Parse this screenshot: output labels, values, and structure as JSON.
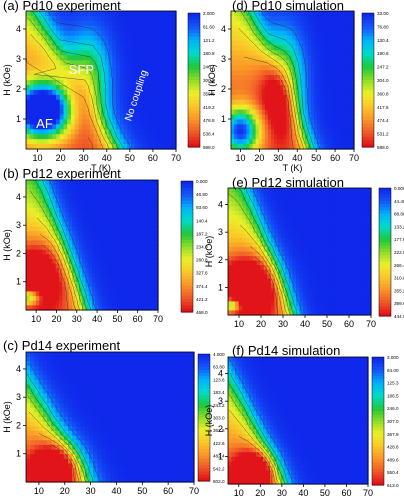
{
  "chart_data": [
    {
      "id": "a",
      "type": "heatmap",
      "title": "(a) Pd10  experiment",
      "xlabel": "T (K)",
      "ylabel": "H (kOe)",
      "xticks": [
        10,
        20,
        30,
        40,
        50,
        60,
        70
      ],
      "yticks": [
        1,
        2,
        3,
        4
      ],
      "xlim": [
        5,
        70
      ],
      "ylim": [
        0,
        4.6
      ],
      "colorbar_labels": [
        "2.000",
        "61.60",
        "121.2",
        "180.8",
        "240.4",
        "300.0",
        "359.6",
        "419.2",
        "478.8",
        "538.4",
        "598.0"
      ],
      "annotations": [
        {
          "text": "SFP",
          "x": 29,
          "y": 2.5,
          "color": "#ffffff",
          "rotate": 0
        },
        {
          "text": "AF",
          "x": 13,
          "y": 0.7,
          "color": "#ffffff",
          "rotate": 0
        },
        {
          "text": "No coupling",
          "x": 54,
          "y": 1.75,
          "color": "#ffffff",
          "rotate": -72
        }
      ]
    },
    {
      "id": "d",
      "type": "heatmap",
      "title": "(d) Pd10  simulation",
      "xlabel": "T (K)",
      "ylabel": "H (kOe)",
      "xticks": [
        10,
        20,
        30,
        40,
        50,
        60,
        70
      ],
      "yticks": [
        1,
        2,
        3,
        4
      ],
      "xlim": [
        5,
        70
      ],
      "ylim": [
        0,
        4.6
      ],
      "colorbar_labels": [
        "33.00",
        "76.80",
        "130.4",
        "190.6",
        "247.2",
        "304.0",
        "360.8",
        "417.6",
        "474.4",
        "531.2",
        "588.0"
      ],
      "annotations": []
    },
    {
      "id": "b",
      "type": "heatmap",
      "title": "(b) Pd12  experiment",
      "xlabel": "",
      "ylabel": "H (kOe)",
      "xticks": [
        10,
        20,
        30,
        40,
        50,
        60,
        70
      ],
      "yticks": [
        1,
        2,
        3,
        4
      ],
      "xlim": [
        5,
        70
      ],
      "ylim": [
        0,
        4.6
      ],
      "colorbar_labels": [
        "0.000",
        "46.80",
        "93.60",
        "140.4",
        "187.2",
        "234.0",
        "280.8",
        "327.6",
        "374.4",
        "421.2",
        "468.0"
      ],
      "annotations": []
    },
    {
      "id": "e",
      "type": "heatmap",
      "title": "(e) Pd12  simulation",
      "xlabel": "",
      "ylabel": "H (kOe)",
      "xticks": [
        10,
        20,
        30,
        40,
        50,
        60,
        70
      ],
      "yticks": [
        1,
        2,
        3,
        4
      ],
      "xlim": [
        5,
        70
      ],
      "ylim": [
        0,
        4.6
      ],
      "colorbar_labels": [
        "0.000",
        "44.40",
        "88.80",
        "133.2",
        "177.6",
        "222.0",
        "266.4",
        "310.8",
        "355.2",
        "399.6",
        "444.0"
      ],
      "annotations": []
    },
    {
      "id": "c",
      "type": "heatmap",
      "title": "(c) Pd14  experiment",
      "xlabel": "",
      "ylabel": "H (kOe)",
      "xticks": [
        10,
        20,
        30,
        40,
        50,
        60,
        70
      ],
      "yticks": [
        1,
        2,
        3,
        4
      ],
      "xlim": [
        5,
        70
      ],
      "ylim": [
        0,
        4.6
      ],
      "colorbar_labels": [
        "4.000",
        "63.80",
        "123.6",
        "183.4",
        "243.2",
        "303.0",
        "362.8",
        "422.6",
        "482.4",
        "542.2",
        "602.0"
      ],
      "annotations": []
    },
    {
      "id": "f",
      "type": "heatmap",
      "title": "(f) Pd14  simulation",
      "xlabel": "",
      "ylabel": "H (kOe)",
      "xticks": [
        10,
        20,
        30,
        40,
        50,
        60,
        70
      ],
      "yticks": [
        1,
        2,
        3,
        4
      ],
      "xlim": [
        5,
        70
      ],
      "ylim": [
        0,
        4.6
      ],
      "colorbar_labels": [
        "3.000",
        "64.00",
        "125.3",
        "186.5",
        "246.0",
        "307.0",
        "367.9",
        "428.8",
        "489.6",
        "550.4",
        "613.0"
      ],
      "annotations": []
    }
  ]
}
